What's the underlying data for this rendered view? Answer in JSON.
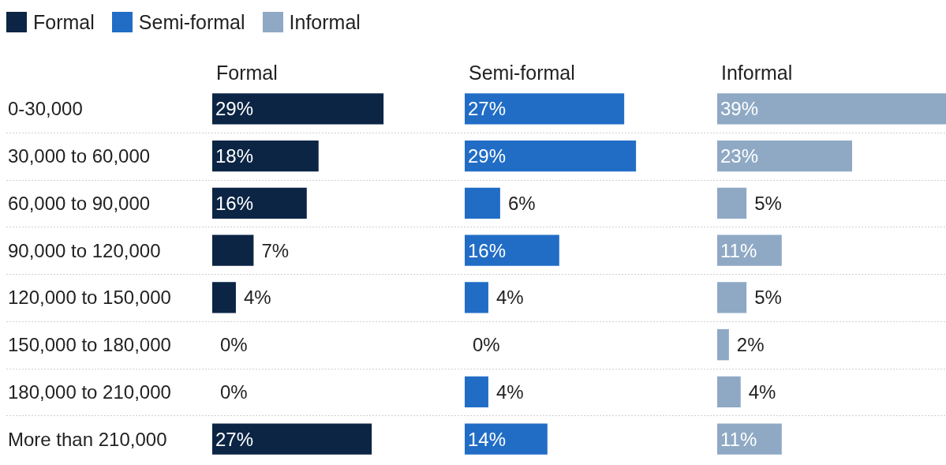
{
  "chart_data": [
    {
      "type": "bar",
      "orientation": "horizontal",
      "title": "Formal",
      "legend": "top left",
      "grid": "y",
      "tick_labels": "y",
      "categories": [
        "0-30,000",
        "30,000 to 60,000",
        "60,000 to 90,000",
        "90,000 to 120,000",
        "120,000 to 150,000",
        "150,000 to 180,000",
        "180,000 to 210,000",
        "More than 210,000"
      ],
      "series": [
        {
          "name": "Formal",
          "color": "#0c2545",
          "values": [
            29,
            18,
            16,
            7,
            4,
            0,
            0,
            27
          ],
          "value_labels": [
            "29%",
            "18%",
            "16%",
            "7%",
            "4%",
            "0%",
            "0%",
            "27%"
          ]
        }
      ]
    },
    {
      "type": "bar",
      "orientation": "horizontal",
      "title": "Semi-formal",
      "legend": "top left",
      "grid": "y",
      "tick_labels": false,
      "categories": [
        null,
        null,
        null,
        null,
        null,
        null,
        null,
        null
      ],
      "series": [
        {
          "name": "Semi-formal",
          "color": "#216dc6",
          "values": [
            27,
            29,
            6,
            16,
            4,
            0,
            4,
            14
          ],
          "value_labels": [
            "27%",
            "29%",
            "6%",
            "16%",
            "4%",
            "0%",
            "4%",
            "14%"
          ]
        }
      ]
    },
    {
      "type": "bar",
      "orientation": "horizontal",
      "title": "Informal",
      "legend": "top left",
      "grid": "y",
      "tick_labels": false,
      "categories": [
        null,
        null,
        null,
        null,
        null,
        null,
        null,
        null
      ],
      "series": [
        {
          "name": "Informal",
          "color": "#8fa9c5",
          "values": [
            39,
            23,
            5,
            11,
            5,
            2,
            4,
            11
          ],
          "value_labels": [
            "39%",
            "23%",
            "5%",
            "11%",
            "5%",
            "2%",
            "4%",
            "11%"
          ]
        }
      ]
    }
  ]
}
